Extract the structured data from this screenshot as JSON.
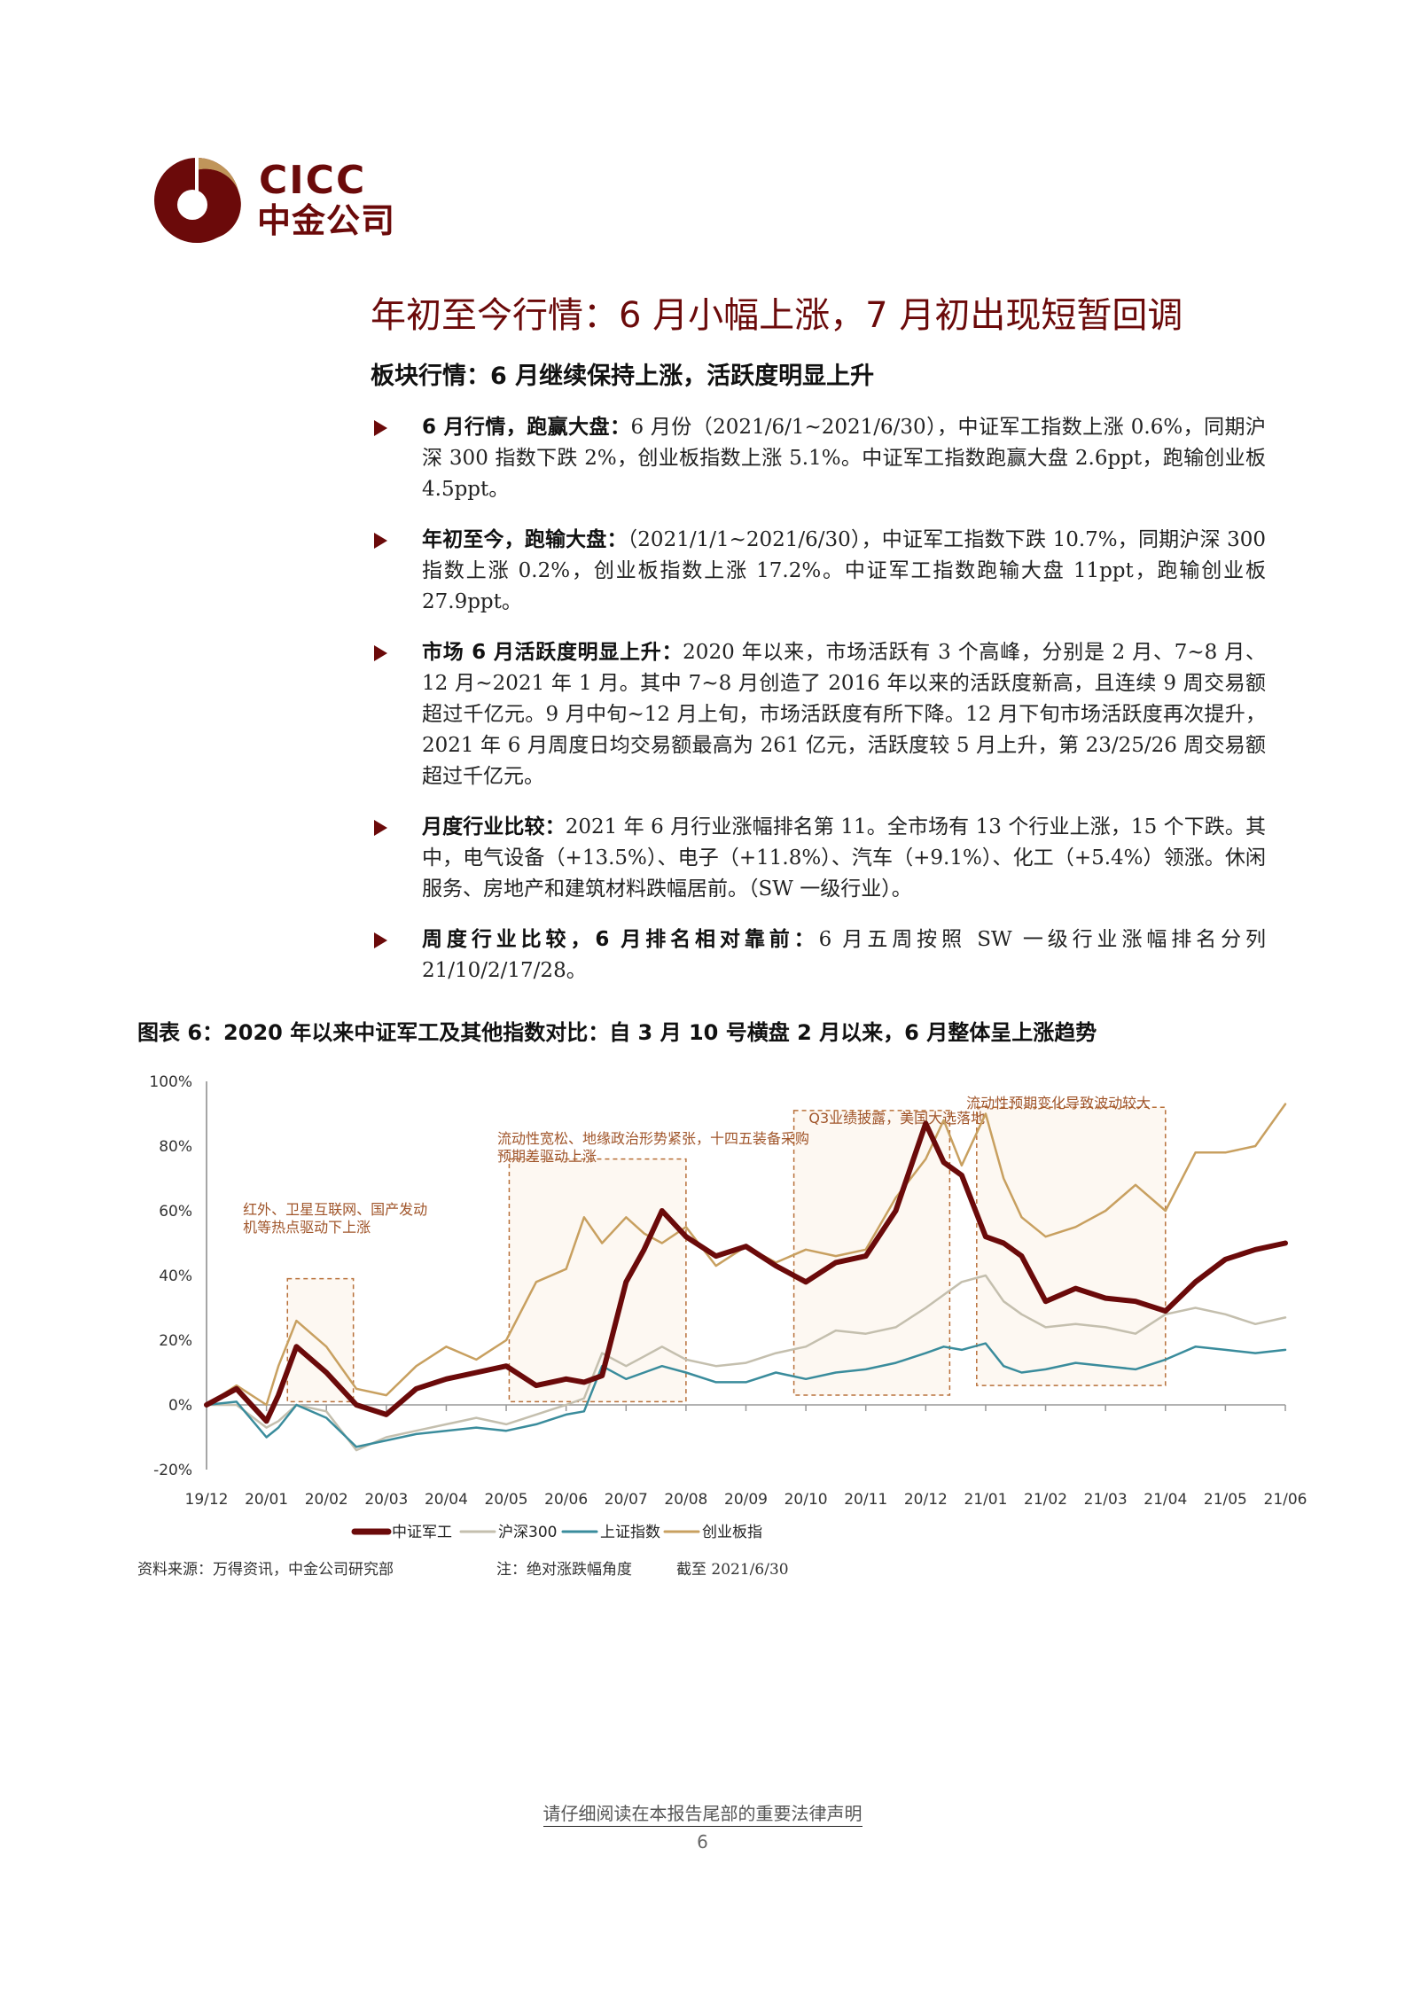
{
  "logo": {
    "brand_en": "CICC",
    "brand_cn": "中金公司",
    "colors": {
      "primary": "#6b0a0a",
      "accent": "#c0955a"
    }
  },
  "header": {
    "title": "年初至今行情：6 月小幅上涨，7 月初出现短暂回调",
    "subtitle": "板块行情：6 月继续保持上涨，活跃度明显上升"
  },
  "bullets": [
    {
      "lead": "6 月行情，跑赢大盘：",
      "text": "6 月份（2021/6/1~2021/6/30），中证军工指数上涨 0.6%，同期沪深 300 指数下跌 2%，创业板指数上涨 5.1%。中证军工指数跑赢大盘 2.6ppt，跑输创业板 4.5ppt。"
    },
    {
      "lead": "年初至今，跑输大盘：",
      "text": "（2021/1/1~2021/6/30），中证军工指数下跌 10.7%，同期沪深 300 指数上涨 0.2%，创业板指数上涨 17.2%。中证军工指数跑输大盘 11ppt，跑输创业板 27.9ppt。"
    },
    {
      "lead": "市场 6 月活跃度明显上升：",
      "text": "2020 年以来，市场活跃有 3 个高峰，分别是 2 月、7~8 月、12 月~2021 年 1 月。其中 7~8 月创造了 2016 年以来的活跃度新高，且连续 9 周交易额超过千亿元。9 月中旬~12 月上旬，市场活跃度有所下降。12 月下旬市场活跃度再次提升，2021 年 6 月周度日均交易额最高为 261 亿元，活跃度较 5 月上升，第 23/25/26 周交易额超过千亿元。"
    },
    {
      "lead": "月度行业比较：",
      "text": "2021 年 6 月行业涨幅排名第 11。全市场有 13 个行业上涨，15 个下跌。其中，电气设备（+13.5%）、电子（+11.8%）、汽车（+9.1%）、化工（+5.4%）领涨。休闲服务、房地产和建筑材料跌幅居前。（SW 一级行业）。"
    },
    {
      "lead": "周度行业比较，6 月排名相对靠前：",
      "text": "6 月五周按照 SW 一级行业涨幅排名分列 21/10/2/17/28。"
    }
  ],
  "figure": {
    "title": "图表 6：2020 年以来中证军工及其他指数对比：自 3 月 10 号横盘 2 月以来，6 月整体呈上涨趋势",
    "source": "资料来源：万得资讯，中金公司研究部",
    "note": "注：绝对涨跌幅角度",
    "as_of": "截至 2021/6/30"
  },
  "chart_data": {
    "type": "line",
    "title": "2020 年以来中证军工及其他指数对比",
    "xlabel": "",
    "ylabel": "",
    "ylim": [
      -20,
      100
    ],
    "yticks": [
      "100%",
      "80%",
      "60%",
      "40%",
      "20%",
      "0%",
      "-20%"
    ],
    "ytick_values": [
      100,
      80,
      60,
      40,
      20,
      0,
      -20
    ],
    "categories": [
      "19/12",
      "20/01",
      "20/02",
      "20/03",
      "20/04",
      "20/05",
      "20/06",
      "20/07",
      "20/08",
      "20/09",
      "20/10",
      "20/11",
      "20/12",
      "21/01",
      "21/02",
      "21/03",
      "21/04",
      "21/05",
      "21/06"
    ],
    "grid": false,
    "legend_position": "bottom",
    "x": [
      0,
      0.5,
      1,
      1.2,
      1.5,
      2,
      2.5,
      3,
      3.5,
      4,
      4.5,
      5,
      5.5,
      6,
      6.3,
      6.6,
      7,
      7.3,
      7.6,
      8,
      8.5,
      9,
      9.5,
      10,
      10.5,
      11,
      11.5,
      12,
      12.3,
      12.6,
      13,
      13.3,
      13.6,
      14,
      14.5,
      15,
      15.5,
      16,
      16.5,
      17,
      17.5,
      18
    ],
    "series": [
      {
        "name": "中证军工",
        "color": "#6b0a0a",
        "width": 6,
        "values": [
          0,
          5,
          -5,
          3,
          18,
          10,
          0,
          -3,
          5,
          8,
          10,
          12,
          6,
          8,
          7,
          9,
          38,
          48,
          60,
          52,
          46,
          49,
          43,
          38,
          44,
          46,
          60,
          87,
          75,
          71,
          52,
          50,
          46,
          32,
          36,
          33,
          32,
          29,
          38,
          45,
          48,
          50
        ]
      },
      {
        "name": "沪深300",
        "color": "#c4bfae",
        "width": 2.5,
        "values": [
          0,
          0,
          -7,
          -5,
          0,
          -2,
          -14,
          -10,
          -8,
          -6,
          -4,
          -6,
          -3,
          0,
          2,
          16,
          12,
          15,
          18,
          14,
          12,
          13,
          16,
          18,
          23,
          22,
          24,
          30,
          34,
          38,
          40,
          32,
          28,
          24,
          25,
          24,
          22,
          28,
          30,
          28,
          25,
          27
        ]
      },
      {
        "name": "上证指数",
        "color": "#3a8c9c",
        "width": 2.5,
        "values": [
          0,
          1,
          -10,
          -7,
          0,
          -4,
          -13,
          -11,
          -9,
          -8,
          -7,
          -8,
          -6,
          -3,
          -2,
          12,
          8,
          10,
          12,
          10,
          7,
          7,
          10,
          8,
          10,
          11,
          13,
          16,
          18,
          17,
          19,
          12,
          10,
          11,
          13,
          12,
          11,
          14,
          18,
          17,
          16,
          17
        ]
      },
      {
        "name": "创业板指",
        "color": "#c8a060",
        "width": 2.5,
        "values": [
          0,
          6,
          0,
          12,
          26,
          18,
          5,
          3,
          12,
          18,
          14,
          20,
          38,
          42,
          58,
          50,
          58,
          53,
          50,
          55,
          43,
          49,
          44,
          48,
          46,
          48,
          64,
          76,
          88,
          74,
          90,
          70,
          58,
          52,
          55,
          60,
          68,
          60,
          78,
          78,
          80,
          93
        ]
      }
    ],
    "annotations": [
      {
        "text": "红外、卫星互联网、国产发动机等热点驱动下上涨",
        "x_range": [
          "20/01",
          "20/02"
        ]
      },
      {
        "text": "流动性宽松、地缘政治形势紧张，十四五装备采购预期差驱动上涨",
        "x_range": [
          "20/05",
          "20/08"
        ]
      },
      {
        "text": "Q3业绩披露，美国大选落地",
        "x_range": [
          "20/10",
          "20/12"
        ]
      },
      {
        "text": "流动性预期变化导致波动较大",
        "x_range": [
          "21/01",
          "21/04"
        ]
      }
    ]
  },
  "footer": {
    "disclaimer_link": "请仔细阅读在本报告尾部的重要法律声明",
    "page_number": "6"
  }
}
